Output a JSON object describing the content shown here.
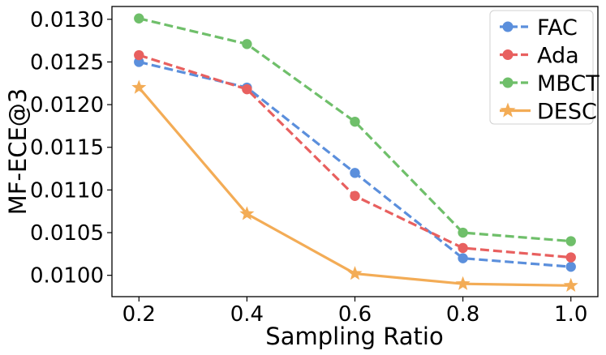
{
  "chart_data": {
    "type": "line",
    "title": "",
    "xlabel": "Sampling Ratio",
    "ylabel": "MF-ECE@3",
    "x": [
      0.2,
      0.4,
      0.6,
      0.8,
      1.0
    ],
    "x_tick_labels": [
      "0.2",
      "0.4",
      "0.6",
      "0.8",
      "1.0"
    ],
    "y_ticks": [
      0.01,
      0.0105,
      0.011,
      0.0115,
      0.012,
      0.0125,
      0.013
    ],
    "y_tick_labels": [
      "0.0100",
      "0.0105",
      "0.0110",
      "0.0115",
      "0.0120",
      "0.0125",
      "0.0130"
    ],
    "xlim": [
      0.15,
      1.05
    ],
    "ylim": [
      0.00975,
      0.01315
    ],
    "grid": false,
    "legend_position": "top-right",
    "series": [
      {
        "name": "FAC",
        "color": "#5b8fdc",
        "line_style": "dashed",
        "marker": "circle",
        "values": [
          0.0125,
          0.0122,
          0.0112,
          0.0102,
          0.0101
        ]
      },
      {
        "name": "Ada",
        "color": "#e8605f",
        "line_style": "dashed",
        "marker": "circle",
        "values": [
          0.01258,
          0.01218,
          0.01093,
          0.01032,
          0.01021
        ]
      },
      {
        "name": "MBCT",
        "color": "#6fbf6a",
        "line_style": "dashed",
        "marker": "circle",
        "values": [
          0.01301,
          0.01271,
          0.0118,
          0.0105,
          0.0104
        ]
      },
      {
        "name": "DESC",
        "color": "#f3ac56",
        "line_style": "solid",
        "marker": "star",
        "values": [
          0.0122,
          0.01072,
          0.01002,
          0.0099,
          0.00988
        ]
      }
    ]
  }
}
